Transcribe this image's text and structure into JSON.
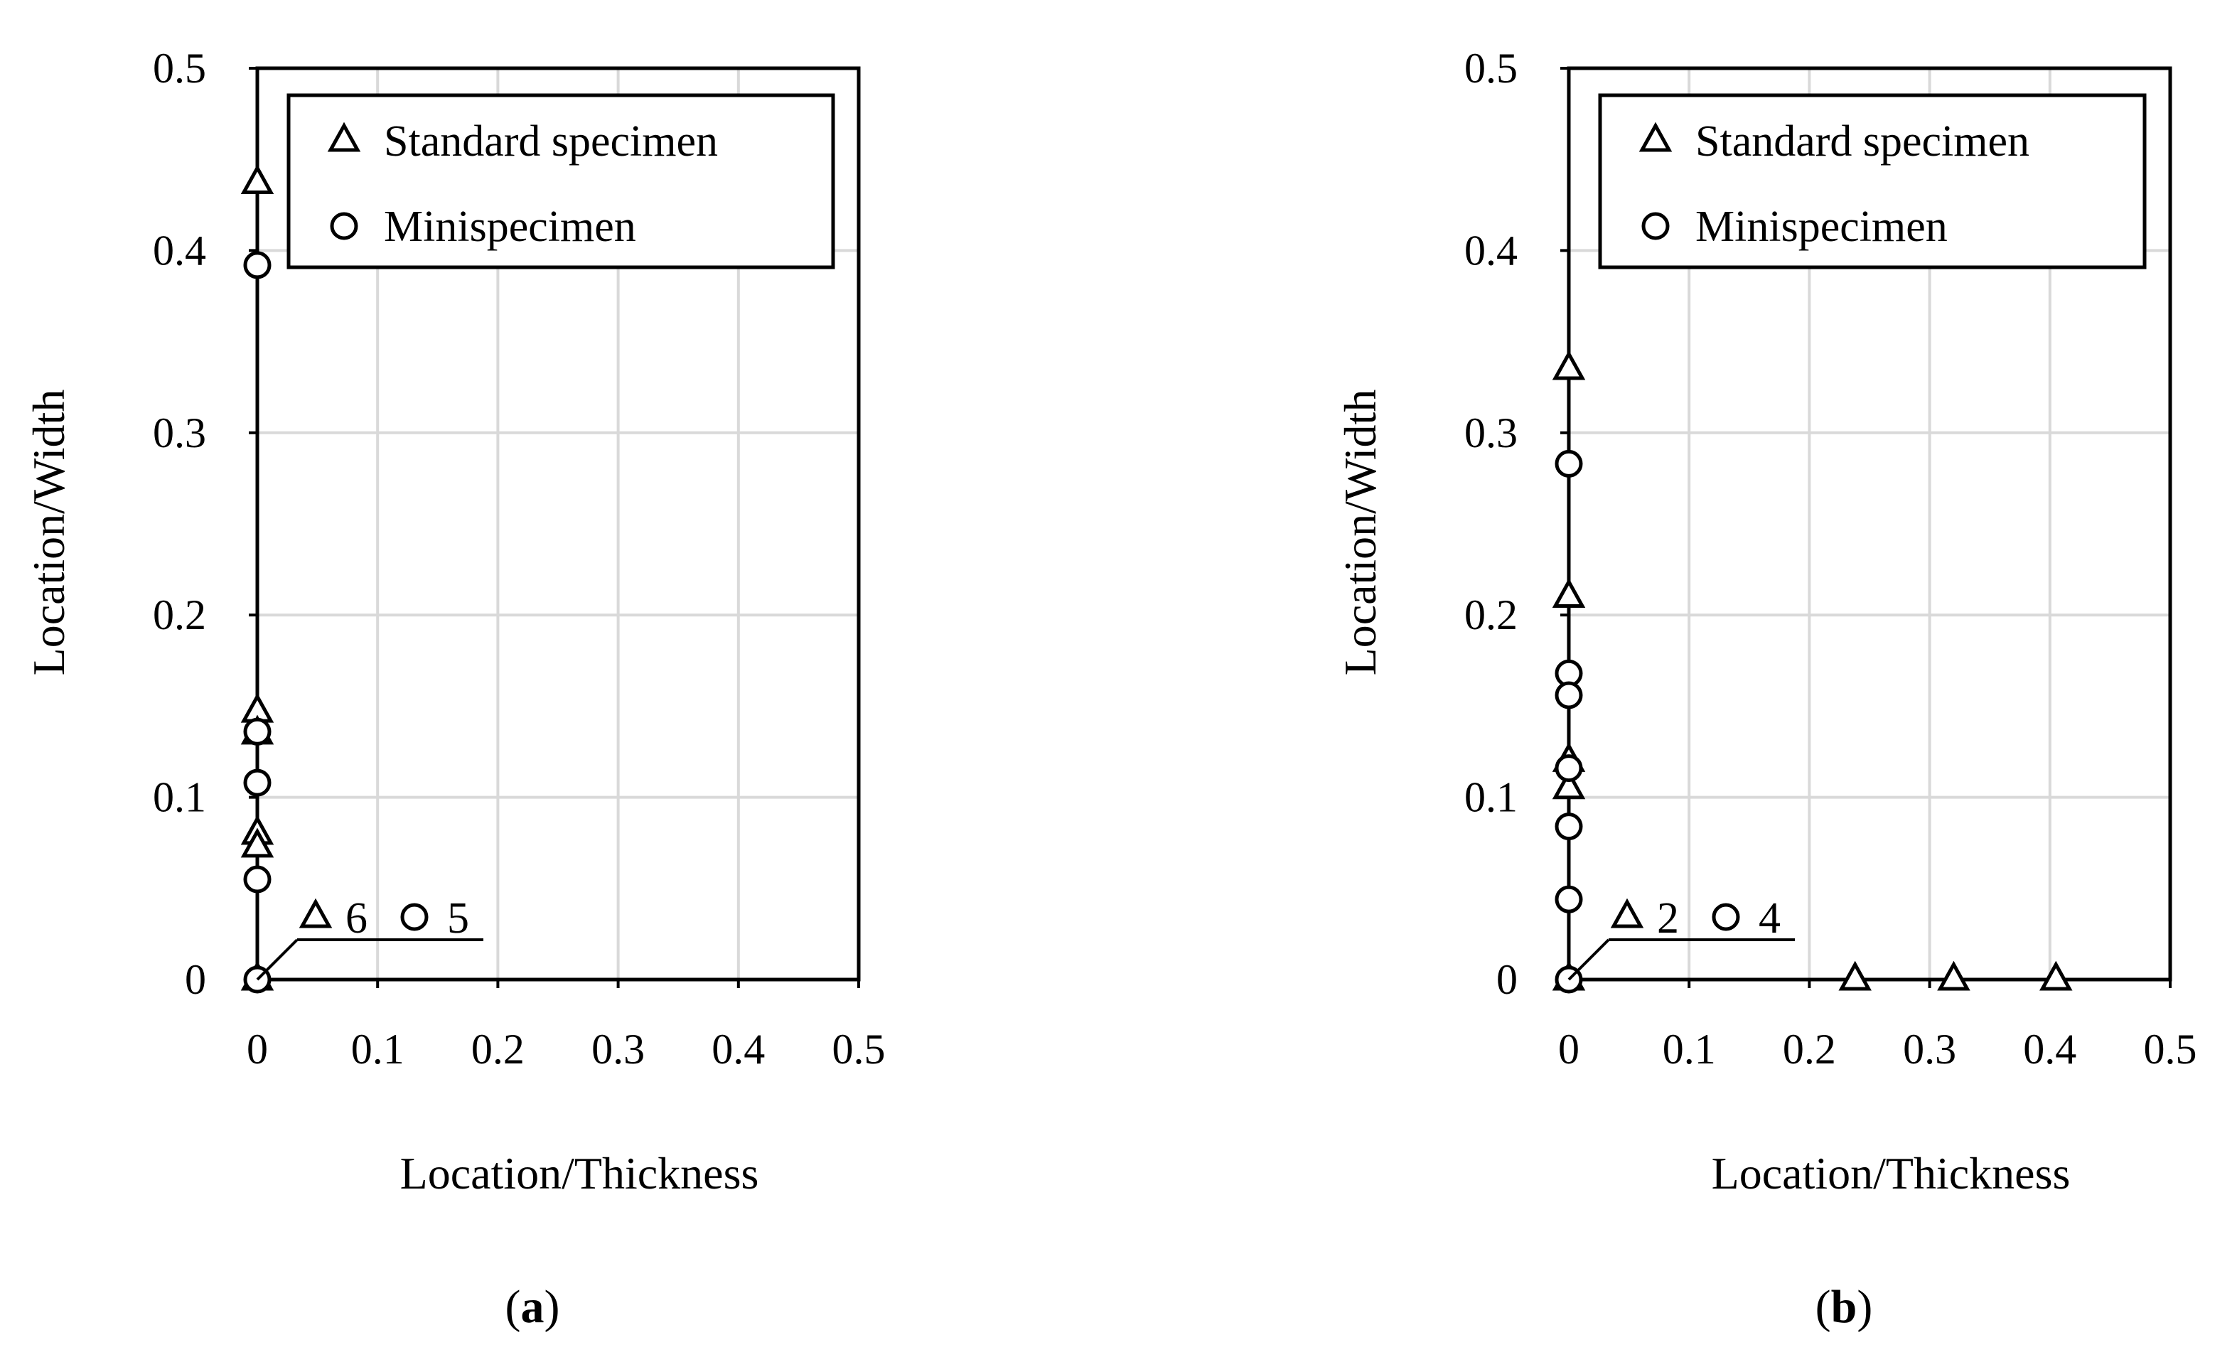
{
  "chart_data": [
    {
      "type": "scatter",
      "panel_label": "a",
      "xlabel": "Location/Thickness",
      "ylabel": "Location/Width",
      "xlim": [
        0,
        0.5
      ],
      "ylim": [
        0,
        0.5
      ],
      "xticks": [
        "0",
        "0.1",
        "0.2",
        "0.3",
        "0.4",
        "0.5"
      ],
      "yticks": [
        "0",
        "0.1",
        "0.2",
        "0.3",
        "0.4",
        "0.5"
      ],
      "grid": true,
      "legend_position": "top-right",
      "series": [
        {
          "name": "Standard specimen",
          "marker": "triangle",
          "points": [
            [
              0,
              0.437
            ],
            [
              0,
              0.147
            ],
            [
              0,
              0.135
            ],
            [
              0,
              0.08
            ],
            [
              0,
              0.073
            ],
            [
              0,
              0
            ]
          ]
        },
        {
          "name": "Minispecimen",
          "marker": "circle",
          "points": [
            [
              0,
              0.392
            ],
            [
              0,
              0.136
            ],
            [
              0,
              0.108
            ],
            [
              0,
              0.055
            ],
            [
              0,
              0
            ]
          ]
        }
      ],
      "annotation": {
        "text": "6  5",
        "parts": [
          {
            "marker": "triangle",
            "count": "6"
          },
          {
            "marker": "circle",
            "count": "5"
          }
        ],
        "points_to": [
          0,
          0
        ]
      }
    },
    {
      "type": "scatter",
      "panel_label": "b",
      "xlabel": "Location/Thickness",
      "ylabel": "Location/Width",
      "xlim": [
        0,
        0.5
      ],
      "ylim": [
        0,
        0.5
      ],
      "xticks": [
        "0",
        "0.1",
        "0.2",
        "0.3",
        "0.4",
        "0.5"
      ],
      "yticks": [
        "0",
        "0.1",
        "0.2",
        "0.3",
        "0.4",
        "0.5"
      ],
      "grid": true,
      "legend_position": "top-right",
      "series": [
        {
          "name": "Standard specimen",
          "marker": "triangle",
          "points": [
            [
              0,
              0.335
            ],
            [
              0,
              0.21
            ],
            [
              0,
              0.12
            ],
            [
              0,
              0.105
            ],
            [
              0,
              0
            ],
            [
              0.238,
              0
            ],
            [
              0.32,
              0
            ],
            [
              0.405,
              0
            ]
          ]
        },
        {
          "name": "Minispecimen",
          "marker": "circle",
          "points": [
            [
              0,
              0.283
            ],
            [
              0,
              0.168
            ],
            [
              0,
              0.156
            ],
            [
              0,
              0.116
            ],
            [
              0,
              0.084
            ],
            [
              0,
              0.044
            ],
            [
              0,
              0
            ]
          ]
        }
      ],
      "annotation": {
        "text": "2  4",
        "parts": [
          {
            "marker": "triangle",
            "count": "2"
          },
          {
            "marker": "circle",
            "count": "4"
          }
        ],
        "points_to": [
          0,
          0
        ]
      }
    }
  ]
}
